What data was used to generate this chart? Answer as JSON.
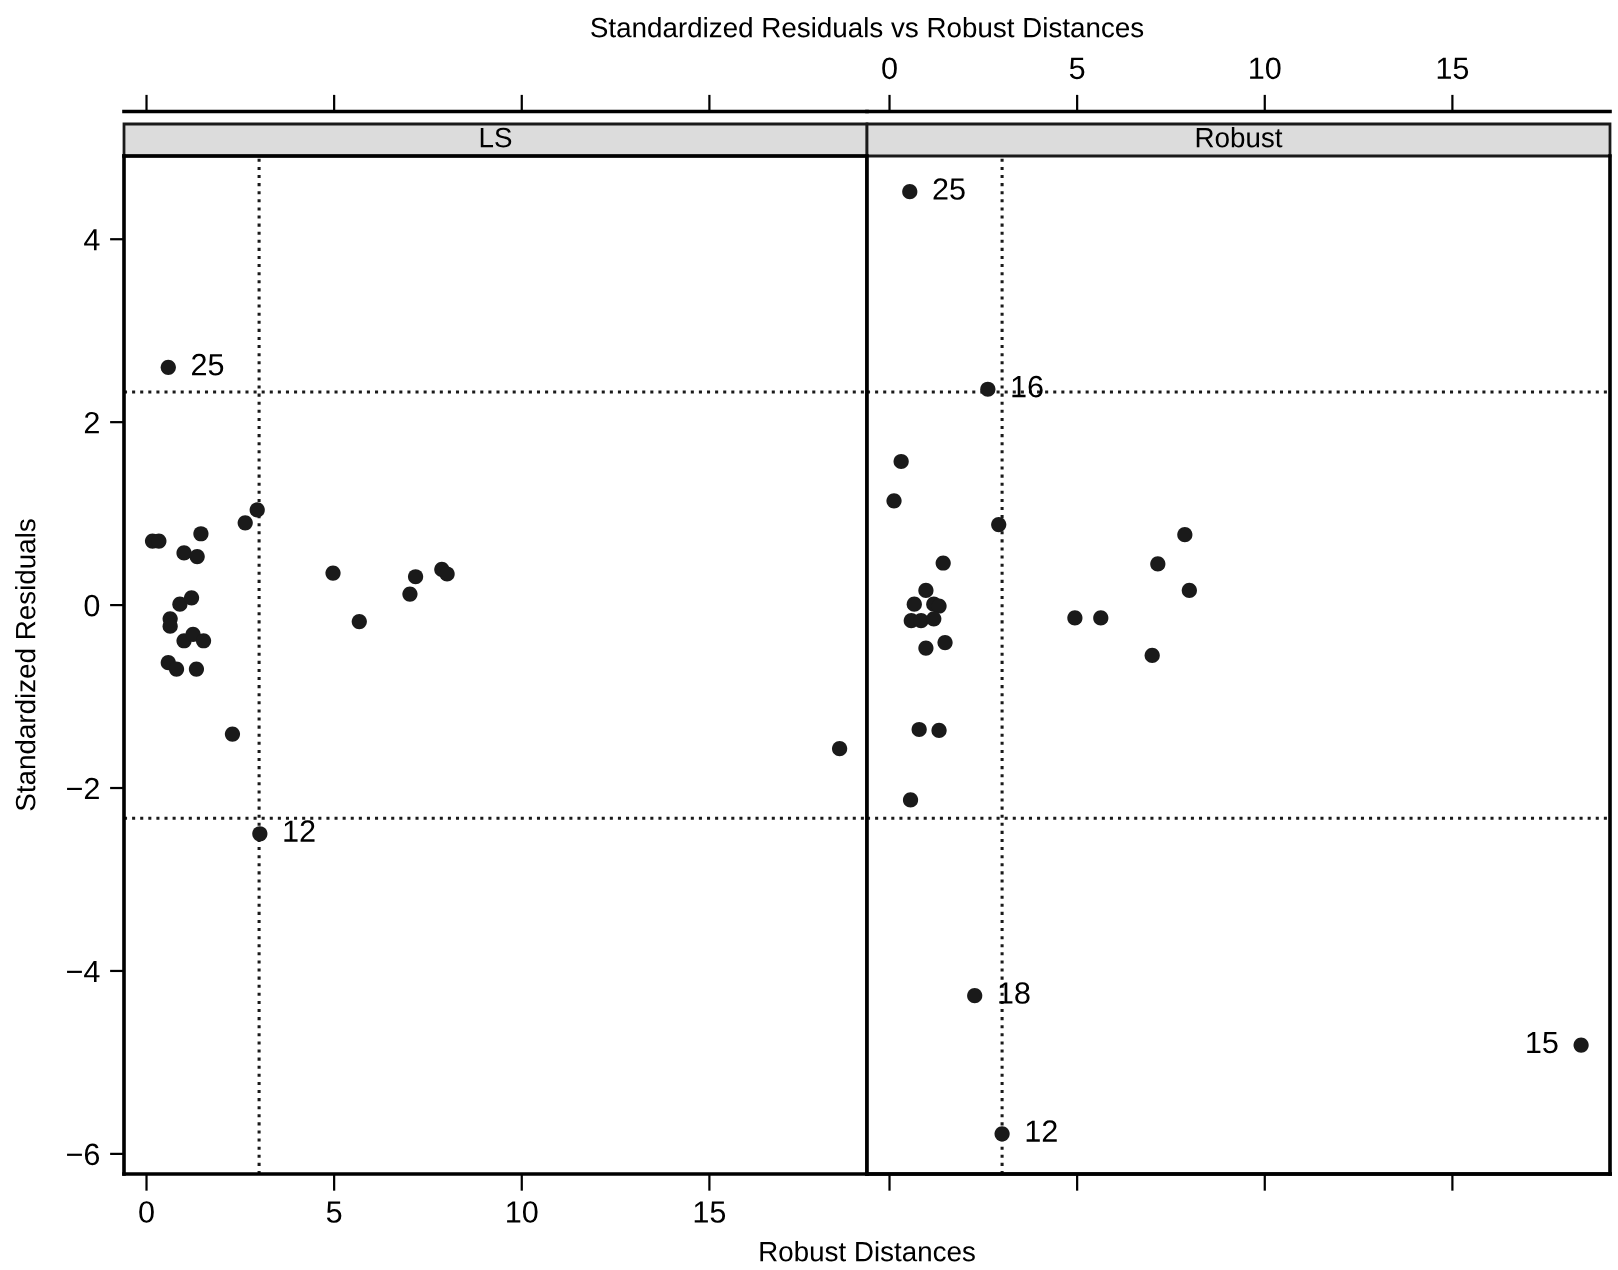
{
  "chart_data": [
    {
      "type": "scatter",
      "title": "Standardized Residuals vs Robust Distances",
      "subtitle": "LS",
      "xlabel": "Robust Distances",
      "ylabel": "Standardized Residuals",
      "color": "#1a1a1a",
      "marker": "circle",
      "x": [
        0.58,
        0.16,
        0.33,
        1.45,
        1.0,
        1.35,
        2.63,
        2.95,
        4.97,
        5.67,
        7.02,
        7.17,
        7.87,
        8.01,
        0.89,
        1.2,
        0.63,
        0.63,
        1.0,
        1.24,
        1.52,
        0.58,
        0.8,
        1.33,
        2.29,
        18.47,
        3.02
      ],
      "values": [
        2.6,
        0.7,
        0.7,
        0.78,
        0.57,
        0.53,
        0.9,
        1.04,
        0.35,
        -0.18,
        0.12,
        0.31,
        0.39,
        0.34,
        0.01,
        0.08,
        -0.15,
        -0.23,
        -0.39,
        -0.32,
        -0.39,
        -0.63,
        -0.7,
        -0.7,
        -1.41,
        -1.57,
        -2.5
      ],
      "xlim": [
        -0.6,
        19.2
      ],
      "xticks": [
        0,
        5,
        10,
        15
      ],
      "ylim": [
        -6.22,
        4.91
      ],
      "yticks": [
        {
          "value": -6,
          "label": "−6"
        },
        {
          "value": -4,
          "label": "−4"
        },
        {
          "value": -2,
          "label": "−2"
        },
        0,
        2,
        4
      ],
      "ref_lines": [
        {
          "axis": "x",
          "value": 3.0,
          "line_style": "dotted"
        },
        {
          "axis": "y",
          "value": 2.33,
          "line_style": "dotted"
        },
        {
          "axis": "y",
          "value": -2.33,
          "line_style": "dotted"
        }
      ],
      "annotations": [
        {
          "text": "25",
          "x": 0.58,
          "y": 2.6
        },
        {
          "text": "12",
          "x": 3.02,
          "y": -2.5
        }
      ]
    },
    {
      "type": "scatter",
      "subtitle": "Robust",
      "color": "#1a1a1a",
      "marker": "circle",
      "tick_labels": "x",
      "x": [
        0.54,
        2.62,
        0.31,
        0.12,
        2.91,
        7.87,
        1.43,
        7.15,
        7.99,
        0.97,
        0.66,
        1.18,
        1.32,
        0.58,
        0.84,
        1.18,
        4.94,
        5.63,
        0.97,
        1.48,
        7.0,
        0.79,
        1.32,
        0.56,
        2.27,
        3.0,
        18.43
      ],
      "values": [
        4.52,
        2.36,
        1.57,
        1.14,
        0.88,
        0.77,
        0.46,
        0.45,
        0.16,
        0.16,
        0.01,
        0.01,
        -0.01,
        -0.17,
        -0.17,
        -0.15,
        -0.14,
        -0.14,
        -0.47,
        -0.41,
        -0.55,
        -1.36,
        -1.37,
        -2.13,
        -4.27,
        -5.78,
        -4.81
      ],
      "xlim": [
        -0.6,
        19.2
      ],
      "xticks": [
        0,
        5,
        10,
        15
      ],
      "ylim": [
        -6.22,
        4.91
      ],
      "ref_lines": [
        {
          "axis": "x",
          "value": 3.0,
          "line_style": "dotted"
        },
        {
          "axis": "y",
          "value": 2.33,
          "line_style": "dotted"
        },
        {
          "axis": "y",
          "value": -2.33,
          "line_style": "dotted"
        }
      ],
      "annotations": [
        {
          "text": "25",
          "x": 0.54,
          "y": 4.52
        },
        {
          "text": "16",
          "x": 2.62,
          "y": 2.36
        },
        {
          "text": "18",
          "x": 2.27,
          "y": -4.27
        },
        {
          "text": "12",
          "x": 3.0,
          "y": -5.78
        },
        {
          "text": "15",
          "x": 18.43,
          "y": -4.81
        }
      ]
    }
  ]
}
